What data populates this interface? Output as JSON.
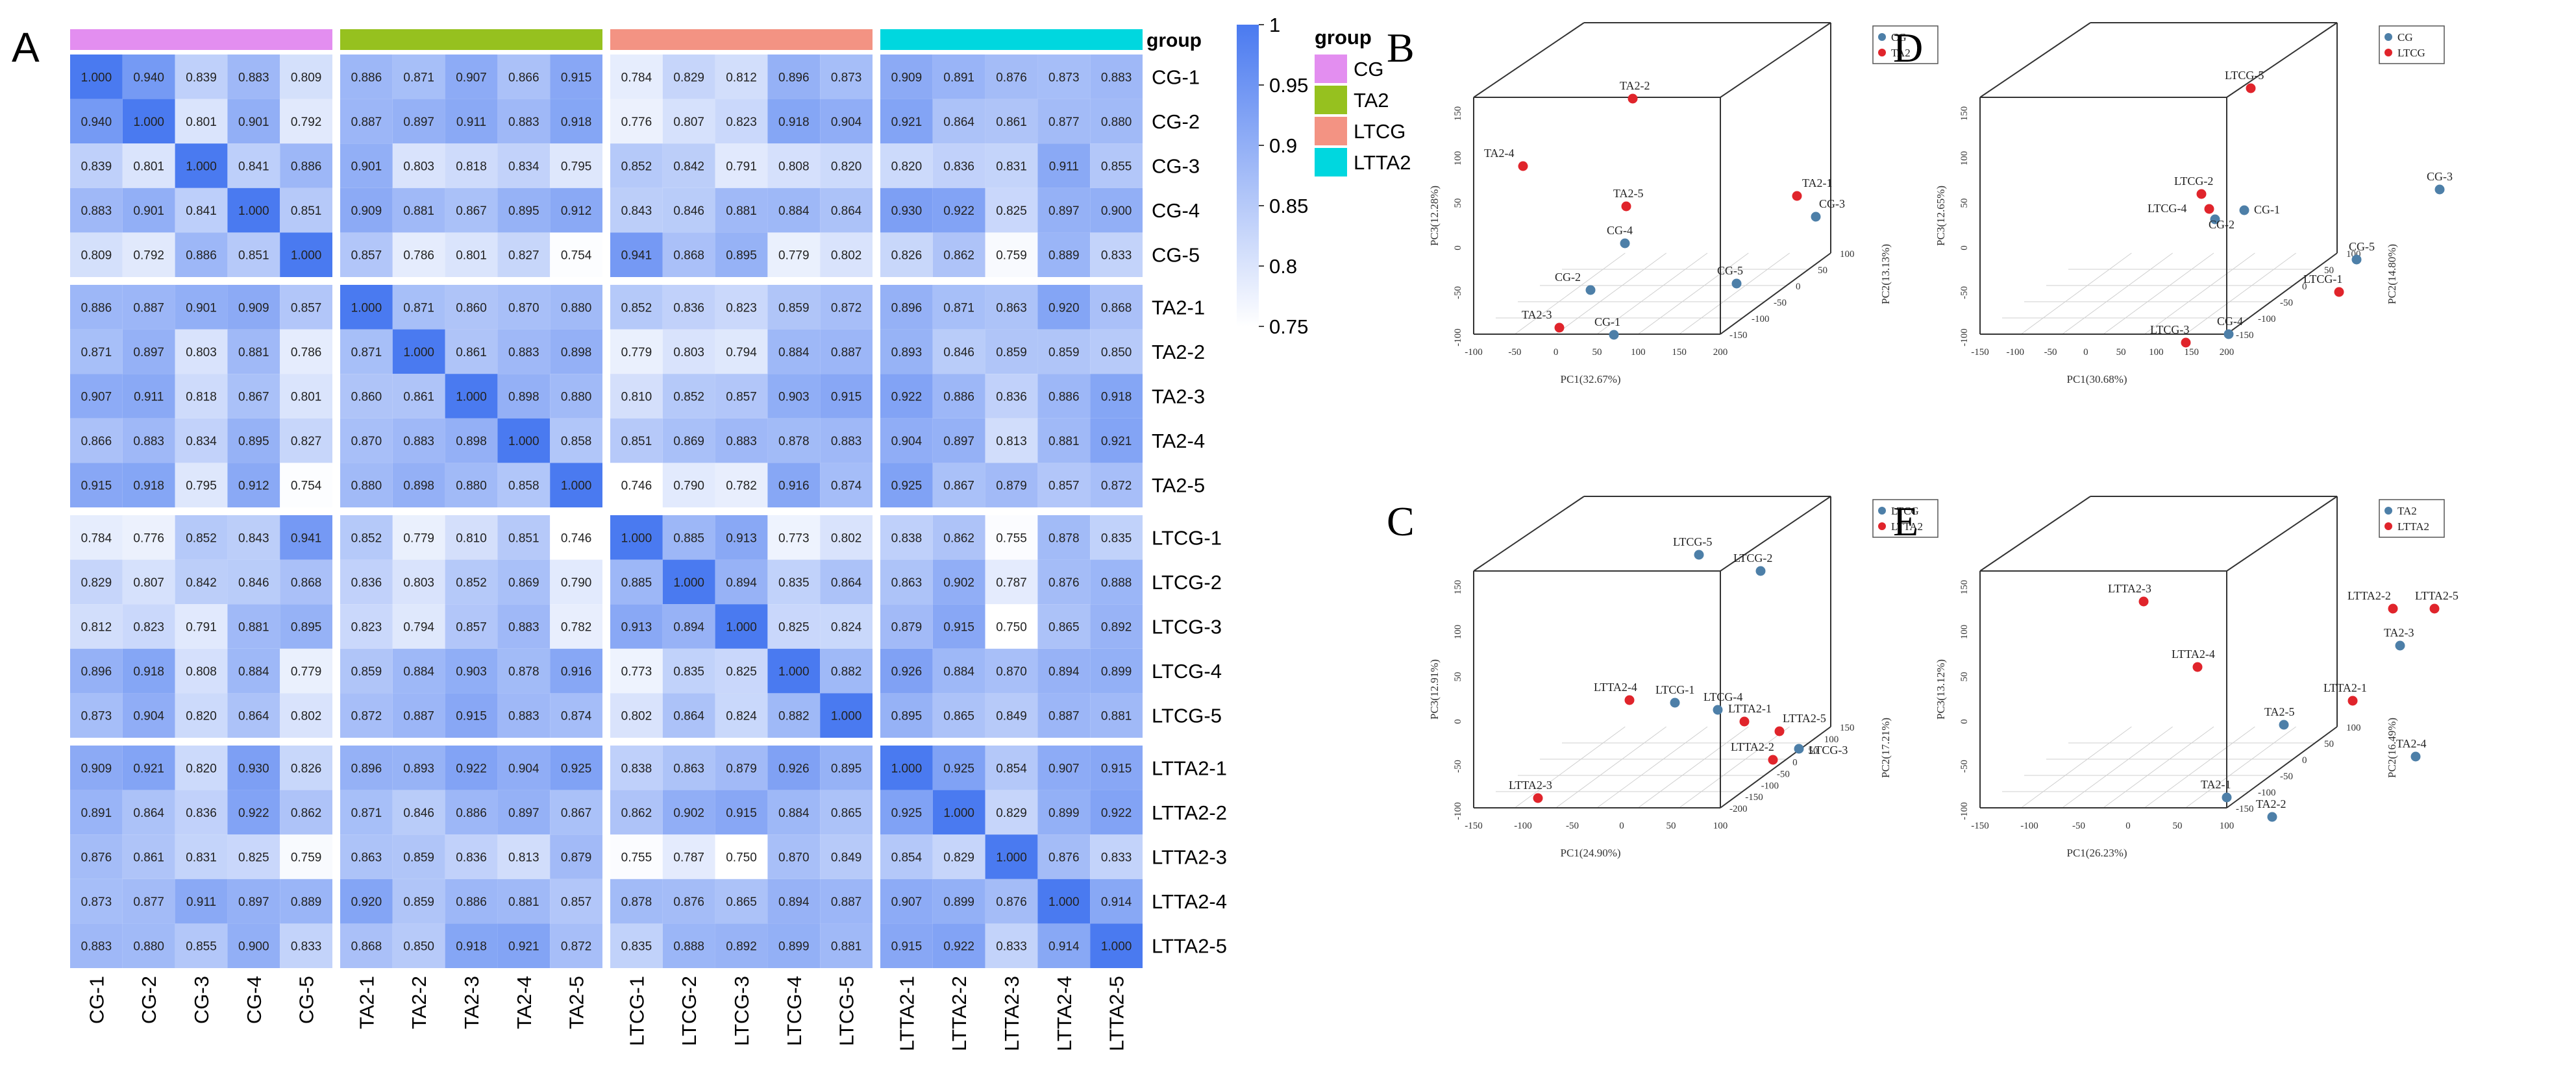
{
  "panel_letters": [
    "A",
    "B",
    "C",
    "D",
    "E"
  ],
  "chart_data": [
    {
      "panel": "A",
      "type": "heatmap",
      "title": "",
      "samples": [
        "CG-1",
        "CG-2",
        "CG-3",
        "CG-4",
        "CG-5",
        "TA2-1",
        "TA2-2",
        "TA2-3",
        "TA2-4",
        "TA2-5",
        "LTCG-1",
        "LTCG-2",
        "LTCG-3",
        "LTCG-4",
        "LTCG-5",
        "LTTA2-1",
        "LTTA2-2",
        "LTTA2-3",
        "LTTA2-4",
        "LTTA2-5"
      ],
      "groups": [
        {
          "name": "CG",
          "color": "#e38ef0"
        },
        {
          "name": "TA2",
          "color": "#96c11f"
        },
        {
          "name": "LTCG",
          "color": "#f39383"
        },
        {
          "name": "LTTA2",
          "color": "#00d7df"
        }
      ],
      "legend_title": "group",
      "colorbar": {
        "ticks": [
          "1",
          "0.95",
          "0.9",
          "0.85",
          "0.8",
          "0.75"
        ],
        "min": 0.75,
        "max": 1.0,
        "low_color": "#ffffff",
        "high_color": "#4a7af0"
      },
      "values": [
        [
          "1.000",
          "0.940",
          "0.839",
          "0.883",
          "0.809",
          "0.886",
          "0.871",
          "0.907",
          "0.866",
          "0.915",
          "0.784",
          "0.829",
          "0.812",
          "0.896",
          "0.873",
          "0.909",
          "0.891",
          "0.876",
          "0.873",
          "0.883"
        ],
        [
          "0.940",
          "1.000",
          "0.801",
          "0.901",
          "0.792",
          "0.887",
          "0.897",
          "0.911",
          "0.883",
          "0.918",
          "0.776",
          "0.807",
          "0.823",
          "0.918",
          "0.904",
          "0.921",
          "0.864",
          "0.861",
          "0.877",
          "0.880"
        ],
        [
          "0.839",
          "0.801",
          "1.000",
          "0.841",
          "0.886",
          "0.901",
          "0.803",
          "0.818",
          "0.834",
          "0.795",
          "0.852",
          "0.842",
          "0.791",
          "0.808",
          "0.820",
          "0.820",
          "0.836",
          "0.831",
          "0.911",
          "0.855"
        ],
        [
          "0.883",
          "0.901",
          "0.841",
          "1.000",
          "0.851",
          "0.909",
          "0.881",
          "0.867",
          "0.895",
          "0.912",
          "0.843",
          "0.846",
          "0.881",
          "0.884",
          "0.864",
          "0.930",
          "0.922",
          "0.825",
          "0.897",
          "0.900"
        ],
        [
          "0.809",
          "0.792",
          "0.886",
          "0.851",
          "1.000",
          "0.857",
          "0.786",
          "0.801",
          "0.827",
          "0.754",
          "0.941",
          "0.868",
          "0.895",
          "0.779",
          "0.802",
          "0.826",
          "0.862",
          "0.759",
          "0.889",
          "0.833"
        ],
        [
          "0.886",
          "0.887",
          "0.901",
          "0.909",
          "0.857",
          "1.000",
          "0.871",
          "0.860",
          "0.870",
          "0.880",
          "0.852",
          "0.836",
          "0.823",
          "0.859",
          "0.872",
          "0.896",
          "0.871",
          "0.863",
          "0.920",
          "0.868"
        ],
        [
          "0.871",
          "0.897",
          "0.803",
          "0.881",
          "0.786",
          "0.871",
          "1.000",
          "0.861",
          "0.883",
          "0.898",
          "0.779",
          "0.803",
          "0.794",
          "0.884",
          "0.887",
          "0.893",
          "0.846",
          "0.859",
          "0.859",
          "0.850"
        ],
        [
          "0.907",
          "0.911",
          "0.818",
          "0.867",
          "0.801",
          "0.860",
          "0.861",
          "1.000",
          "0.898",
          "0.880",
          "0.810",
          "0.852",
          "0.857",
          "0.903",
          "0.915",
          "0.922",
          "0.886",
          "0.836",
          "0.886",
          "0.918"
        ],
        [
          "0.866",
          "0.883",
          "0.834",
          "0.895",
          "0.827",
          "0.870",
          "0.883",
          "0.898",
          "1.000",
          "0.858",
          "0.851",
          "0.869",
          "0.883",
          "0.878",
          "0.883",
          "0.904",
          "0.897",
          "0.813",
          "0.881",
          "0.921"
        ],
        [
          "0.915",
          "0.918",
          "0.795",
          "0.912",
          "0.754",
          "0.880",
          "0.898",
          "0.880",
          "0.858",
          "1.000",
          "0.746",
          "0.790",
          "0.782",
          "0.916",
          "0.874",
          "0.925",
          "0.867",
          "0.879",
          "0.857",
          "0.872"
        ],
        [
          "0.784",
          "0.776",
          "0.852",
          "0.843",
          "0.941",
          "0.852",
          "0.779",
          "0.810",
          "0.851",
          "0.746",
          "1.000",
          "0.885",
          "0.913",
          "0.773",
          "0.802",
          "0.838",
          "0.862",
          "0.755",
          "0.878",
          "0.835"
        ],
        [
          "0.829",
          "0.807",
          "0.842",
          "0.846",
          "0.868",
          "0.836",
          "0.803",
          "0.852",
          "0.869",
          "0.790",
          "0.885",
          "1.000",
          "0.894",
          "0.835",
          "0.864",
          "0.863",
          "0.902",
          "0.787",
          "0.876",
          "0.888"
        ],
        [
          "0.812",
          "0.823",
          "0.791",
          "0.881",
          "0.895",
          "0.823",
          "0.794",
          "0.857",
          "0.883",
          "0.782",
          "0.913",
          "0.894",
          "1.000",
          "0.825",
          "0.824",
          "0.879",
          "0.915",
          "0.750",
          "0.865",
          "0.892"
        ],
        [
          "0.896",
          "0.918",
          "0.808",
          "0.884",
          "0.779",
          "0.859",
          "0.884",
          "0.903",
          "0.878",
          "0.916",
          "0.773",
          "0.835",
          "0.825",
          "1.000",
          "0.882",
          "0.926",
          "0.884",
          "0.870",
          "0.894",
          "0.899"
        ],
        [
          "0.873",
          "0.904",
          "0.820",
          "0.864",
          "0.802",
          "0.872",
          "0.887",
          "0.915",
          "0.883",
          "0.874",
          "0.802",
          "0.864",
          "0.824",
          "0.882",
          "1.000",
          "0.895",
          "0.865",
          "0.849",
          "0.887",
          "0.881"
        ],
        [
          "0.909",
          "0.921",
          "0.820",
          "0.930",
          "0.826",
          "0.896",
          "0.893",
          "0.922",
          "0.904",
          "0.925",
          "0.838",
          "0.863",
          "0.879",
          "0.926",
          "0.895",
          "1.000",
          "0.925",
          "0.854",
          "0.907",
          "0.915"
        ],
        [
          "0.891",
          "0.864",
          "0.836",
          "0.922",
          "0.862",
          "0.871",
          "0.846",
          "0.886",
          "0.897",
          "0.867",
          "0.862",
          "0.902",
          "0.915",
          "0.884",
          "0.865",
          "0.925",
          "1.000",
          "0.829",
          "0.899",
          "0.922"
        ],
        [
          "0.876",
          "0.861",
          "0.831",
          "0.825",
          "0.759",
          "0.863",
          "0.859",
          "0.836",
          "0.813",
          "0.879",
          "0.755",
          "0.787",
          "0.750",
          "0.870",
          "0.849",
          "0.854",
          "0.829",
          "1.000",
          "0.876",
          "0.833"
        ],
        [
          "0.873",
          "0.877",
          "0.911",
          "0.897",
          "0.889",
          "0.920",
          "0.859",
          "0.886",
          "0.881",
          "0.857",
          "0.878",
          "0.876",
          "0.865",
          "0.894",
          "0.887",
          "0.907",
          "0.899",
          "0.876",
          "1.000",
          "0.914"
        ],
        [
          "0.883",
          "0.880",
          "0.855",
          "0.900",
          "0.833",
          "0.868",
          "0.850",
          "0.918",
          "0.921",
          "0.872",
          "0.835",
          "0.888",
          "0.892",
          "0.899",
          "0.881",
          "0.915",
          "0.922",
          "0.833",
          "0.914",
          "1.000"
        ]
      ]
    },
    {
      "panel": "B",
      "type": "scatter",
      "title": "",
      "xlabel": "PC1(32.67%)",
      "ylabel": "PC3(12.28%)",
      "zlabel": "PC2(13.13%)",
      "x_ticks": [
        "-100",
        "-50",
        "0",
        "50",
        "100",
        "150",
        "200"
      ],
      "y_ticks": [
        "150",
        "100",
        "50",
        "0",
        "-50",
        "-100"
      ],
      "z_ticks": [
        "100",
        "50",
        "0",
        "-50",
        "-100",
        "-150"
      ],
      "legend": [
        {
          "name": "CG",
          "color": "#4d7fa8"
        },
        {
          "name": "TA2",
          "color": "#e0242b"
        }
      ],
      "points": [
        {
          "label": "TA2-2",
          "group": "TA2"
        },
        {
          "label": "TA2-4",
          "group": "TA2"
        },
        {
          "label": "TA2-5",
          "group": "TA2"
        },
        {
          "label": "TA2-1",
          "group": "TA2"
        },
        {
          "label": "TA2-3",
          "group": "TA2"
        },
        {
          "label": "CG-4",
          "group": "CG"
        },
        {
          "label": "CG-3",
          "group": "CG"
        },
        {
          "label": "CG-2",
          "group": "CG"
        },
        {
          "label": "CG-5",
          "group": "CG"
        },
        {
          "label": "CG-1",
          "group": "CG"
        }
      ]
    },
    {
      "panel": "C",
      "type": "scatter",
      "title": "",
      "xlabel": "PC1(24.90%)",
      "ylabel": "PC3(12.91%)",
      "zlabel": "PC2(17.21%)",
      "x_ticks": [
        "-150",
        "-100",
        "-50",
        "0",
        "50",
        "100"
      ],
      "y_ticks": [
        "150",
        "100",
        "50",
        "0",
        "-50",
        "-100"
      ],
      "z_ticks": [
        "150",
        "100",
        "50",
        "0",
        "-50",
        "-100",
        "-150",
        "-200"
      ],
      "legend": [
        {
          "name": "LTCG",
          "color": "#4d7fa8"
        },
        {
          "name": "LTTA2",
          "color": "#e0242b"
        }
      ],
      "points": [
        {
          "label": "LTCG-5",
          "group": "LTCG"
        },
        {
          "label": "LTCG-2",
          "group": "LTCG"
        },
        {
          "label": "LTTA2-4",
          "group": "LTTA2"
        },
        {
          "label": "LTCG-1",
          "group": "LTCG"
        },
        {
          "label": "LTCG-4",
          "group": "LTCG"
        },
        {
          "label": "LTTA2-1",
          "group": "LTTA2"
        },
        {
          "label": "LTTA2-5",
          "group": "LTTA2"
        },
        {
          "label": "LTTA2-2",
          "group": "LTTA2"
        },
        {
          "label": "LTCG-3",
          "group": "LTCG"
        },
        {
          "label": "LTTA2-3",
          "group": "LTTA2"
        }
      ]
    },
    {
      "panel": "D",
      "type": "scatter",
      "title": "",
      "xlabel": "PC1(30.68%)",
      "ylabel": "PC3(12.65%)",
      "zlabel": "PC2(14.80%)",
      "x_ticks": [
        "-150",
        "-100",
        "-50",
        "0",
        "50",
        "100",
        "150",
        "200"
      ],
      "y_ticks": [
        "150",
        "100",
        "50",
        "0",
        "-50",
        "-100"
      ],
      "z_ticks": [
        "100",
        "50",
        "0",
        "-50",
        "-100",
        "-150"
      ],
      "legend": [
        {
          "name": "CG",
          "color": "#4d7fa8"
        },
        {
          "name": "LTCG",
          "color": "#e0242b"
        }
      ],
      "points": [
        {
          "label": "LTCG-5",
          "group": "LTCG"
        },
        {
          "label": "CG-3",
          "group": "CG"
        },
        {
          "label": "LTCG-2",
          "group": "LTCG"
        },
        {
          "label": "LTCG-4",
          "group": "LTCG"
        },
        {
          "label": "CG-1",
          "group": "CG"
        },
        {
          "label": "CG-2",
          "group": "CG"
        },
        {
          "label": "CG-5",
          "group": "CG"
        },
        {
          "label": "LTCG-1",
          "group": "LTCG"
        },
        {
          "label": "CG-4",
          "group": "CG"
        },
        {
          "label": "LTCG-3",
          "group": "LTCG"
        }
      ]
    },
    {
      "panel": "E",
      "type": "scatter",
      "title": "",
      "xlabel": "PC1(26.23%)",
      "ylabel": "PC3(13.12%)",
      "zlabel": "PC2(16.49%)",
      "x_ticks": [
        "-150",
        "-100",
        "-50",
        "0",
        "50",
        "100"
      ],
      "y_ticks": [
        "150",
        "100",
        "50",
        "0",
        "-50",
        "-100"
      ],
      "z_ticks": [
        "100",
        "50",
        "0",
        "-50",
        "-100",
        "-150"
      ],
      "legend": [
        {
          "name": "TA2",
          "color": "#4d7fa8"
        },
        {
          "name": "LTTA2",
          "color": "#e0242b"
        }
      ],
      "points": [
        {
          "label": "LTTA2-3",
          "group": "LTTA2"
        },
        {
          "label": "LTTA2-2",
          "group": "LTTA2"
        },
        {
          "label": "LTTA2-5",
          "group": "LTTA2"
        },
        {
          "label": "TA2-3",
          "group": "TA2"
        },
        {
          "label": "LTTA2-4",
          "group": "LTTA2"
        },
        {
          "label": "LTTA2-1",
          "group": "LTTA2"
        },
        {
          "label": "TA2-5",
          "group": "TA2"
        },
        {
          "label": "TA2-4",
          "group": "TA2"
        },
        {
          "label": "TA2-1",
          "group": "TA2"
        },
        {
          "label": "TA2-2",
          "group": "TA2"
        }
      ]
    }
  ]
}
